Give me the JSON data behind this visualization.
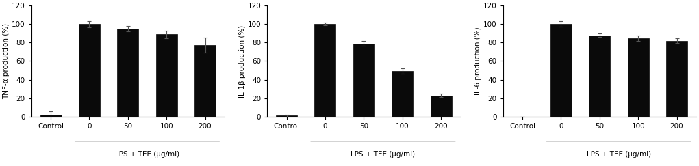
{
  "charts": [
    {
      "ylabel": "TNF-α production (%)",
      "categories": [
        "Control",
        "0",
        "50",
        "100",
        "200"
      ],
      "values": [
        2.0,
        100.0,
        95.0,
        89.0,
        77.5
      ],
      "errors": [
        3.5,
        3.5,
        3.0,
        4.0,
        8.0
      ],
      "xlabel": "LPS + TEE (μg/ml)",
      "ylim": [
        0,
        120
      ],
      "yticks": [
        0,
        20,
        40,
        60,
        80,
        100,
        120
      ]
    },
    {
      "ylabel": "IL-1β production (%)",
      "categories": [
        "Control",
        "0",
        "50",
        "100",
        "200"
      ],
      "values": [
        1.0,
        100.0,
        79.0,
        49.0,
        23.0
      ],
      "errors": [
        1.0,
        1.5,
        2.5,
        3.0,
        2.0
      ],
      "xlabel": "LPS + TEE (μg/ml)",
      "ylim": [
        0,
        120
      ],
      "yticks": [
        0,
        20,
        40,
        60,
        80,
        100,
        120
      ]
    },
    {
      "ylabel": "IL-6 production (%)",
      "categories": [
        "Control",
        "0",
        "50",
        "100",
        "200"
      ],
      "values": [
        0.0,
        100.0,
        88.0,
        85.0,
        82.0
      ],
      "errors": [
        0.0,
        3.0,
        2.0,
        3.0,
        2.5
      ],
      "xlabel": "LPS + TEE (μg/ml)",
      "ylim": [
        0,
        120
      ],
      "yticks": [
        0,
        20,
        40,
        60,
        80,
        100,
        120
      ]
    }
  ],
  "bar_color": "#0a0a0a",
  "bar_width": 0.55,
  "figsize": [
    10.21,
    2.43
  ],
  "dpi": 100,
  "background_color": "#ffffff",
  "font_size": 7.5,
  "tick_font_size": 7.5,
  "label_font_size": 7.5,
  "ecolor": "#555555",
  "capsize": 2.5
}
